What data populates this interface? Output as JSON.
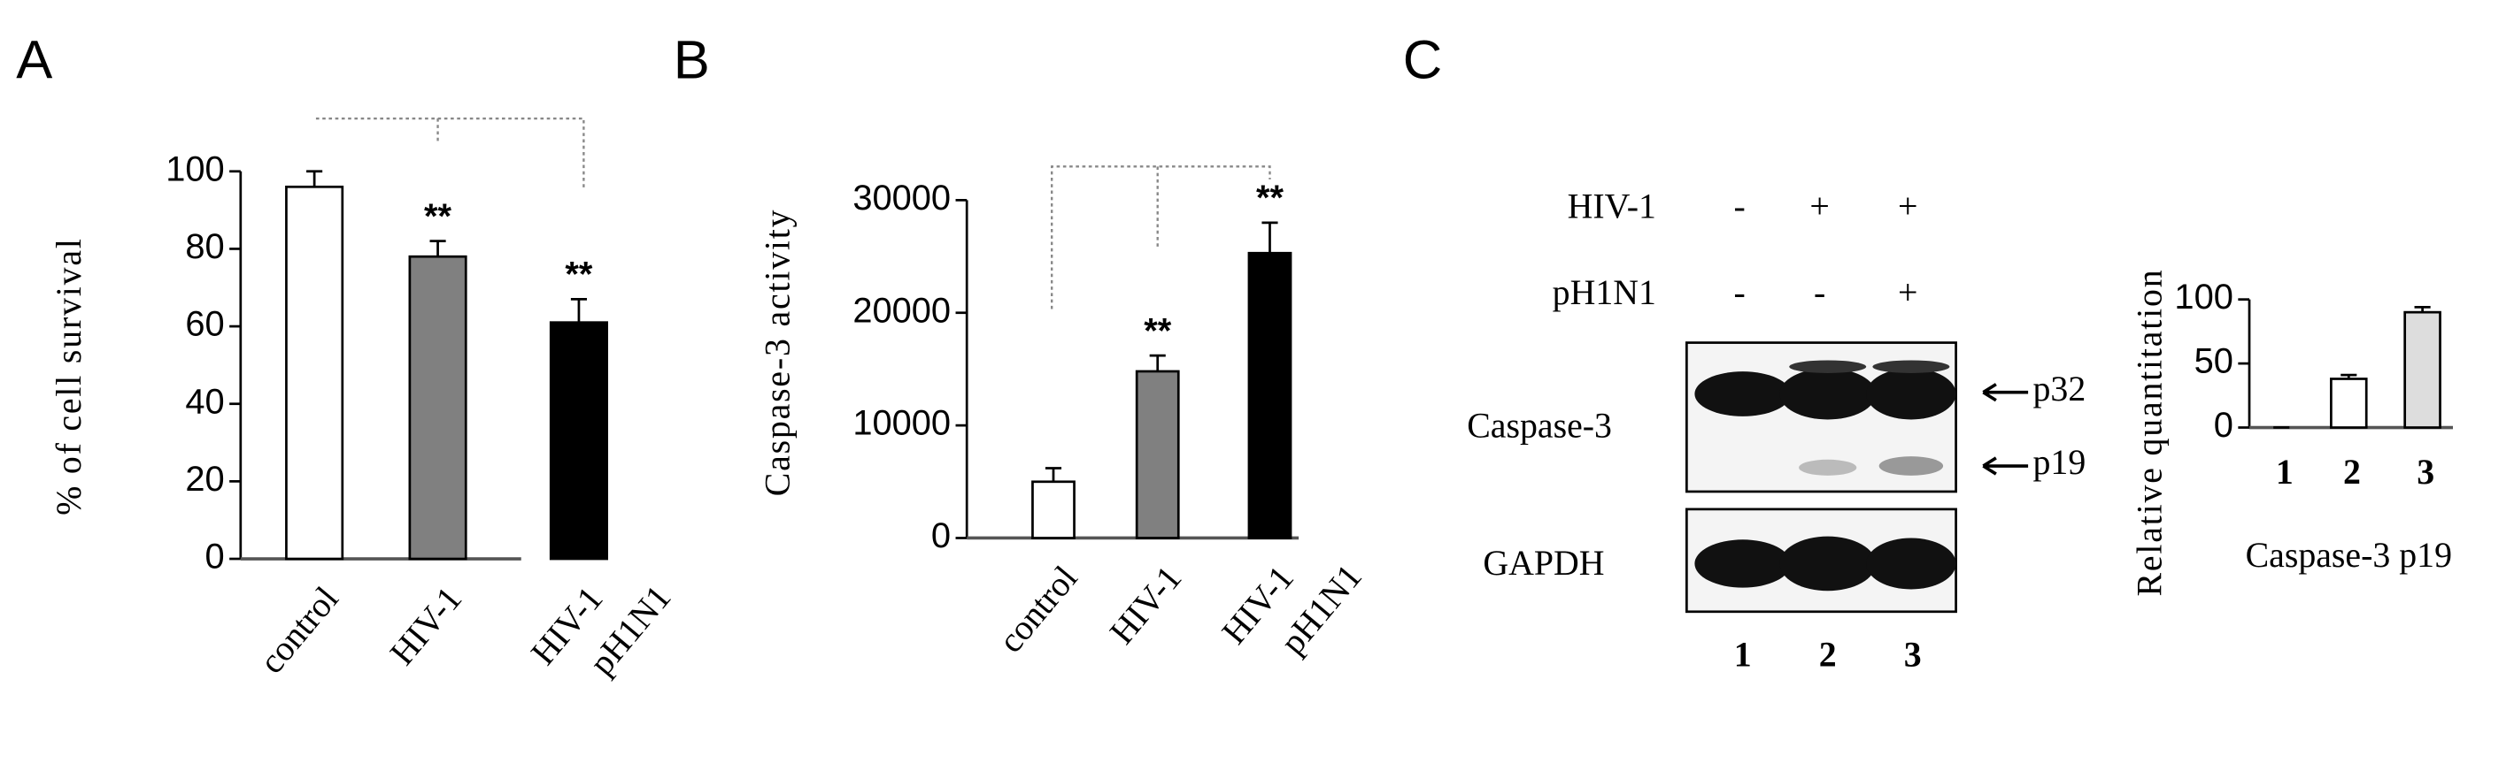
{
  "panels": [
    "A",
    "B",
    "C"
  ],
  "chart_data": [
    {
      "type": "bar",
      "y_label": "% of cell survival",
      "categories": [
        "control",
        "HIV-1",
        "HIV-1 pH1N1"
      ],
      "values": [
        96,
        78,
        61
      ],
      "errors": [
        4,
        4,
        6
      ],
      "colors": [
        "#ffffff",
        "#808080",
        "#000000"
      ],
      "annotations": [
        null,
        "**",
        "**"
      ],
      "ylim": [
        0,
        100
      ],
      "yticks": [
        0,
        20,
        40,
        60,
        80,
        100
      ]
    },
    {
      "type": "bar",
      "y_label": "Caspase-3 activity",
      "categories": [
        "control",
        "HIV-1",
        "HIV-1 pH1N1"
      ],
      "values": [
        5000,
        14800,
        25300
      ],
      "errors": [
        1200,
        1400,
        2700
      ],
      "colors": [
        "#ffffff",
        "#808080",
        "#000000"
      ],
      "annotations": [
        null,
        "**",
        "**"
      ],
      "ylim": [
        0,
        30000
      ],
      "yticks": [
        0,
        10000,
        20000,
        30000
      ]
    },
    {
      "type": "bar",
      "y_label": "Relative quantitation",
      "x_label": "Caspase-3 p19",
      "categories": [
        "1",
        "2",
        "3"
      ],
      "values": [
        0,
        38,
        90
      ],
      "errors": [
        0,
        3,
        4
      ],
      "colors": [
        "#ffffff",
        "#ffffff",
        "#dddddd"
      ],
      "ylim": [
        0,
        100
      ],
      "yticks": [
        0,
        50,
        100
      ]
    }
  ],
  "blot": {
    "treatments": [
      {
        "name": "HIV-1",
        "signs": [
          "-",
          "+",
          "+"
        ]
      },
      {
        "name": "pH1N1",
        "signs": [
          "-",
          "-",
          "+"
        ]
      }
    ],
    "rows": [
      "Caspase-3",
      "GAPDH"
    ],
    "bands": [
      "p32",
      "p19"
    ],
    "lanes": [
      "1",
      "2",
      "3"
    ]
  }
}
